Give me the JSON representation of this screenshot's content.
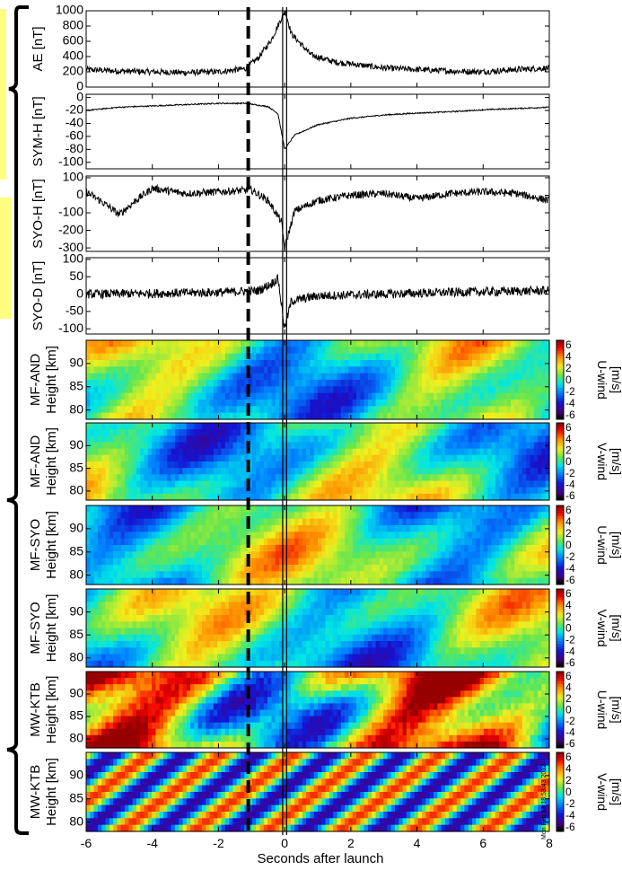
{
  "figure": {
    "xlabel": "Seconds after launch",
    "xlim": [
      -6,
      8
    ],
    "xticks": [
      -6,
      -4,
      -2,
      0,
      2,
      4,
      6,
      8
    ],
    "timestamp_text": "Mon Feb 13 18:53:43 2012",
    "colors": {
      "highlight": "#ffff80",
      "line": "#000000"
    }
  },
  "chart_data": [
    {
      "type": "line",
      "ylabel": "AE [nT]",
      "ylim": [
        0,
        1000
      ],
      "yticks": [
        0,
        200,
        400,
        600,
        800,
        1000
      ],
      "series_shape": [
        {
          "x": -6,
          "y": 230
        },
        {
          "x": -5,
          "y": 210
        },
        {
          "x": -4,
          "y": 200
        },
        {
          "x": -3,
          "y": 190
        },
        {
          "x": -2,
          "y": 200
        },
        {
          "x": -1.2,
          "y": 240
        },
        {
          "x": -0.8,
          "y": 380
        },
        {
          "x": -0.4,
          "y": 620
        },
        {
          "x": -0.1,
          "y": 900
        },
        {
          "x": 0.02,
          "y": 1000
        },
        {
          "x": 0.2,
          "y": 700
        },
        {
          "x": 0.8,
          "y": 420
        },
        {
          "x": 1.5,
          "y": 330
        },
        {
          "x": 3,
          "y": 250
        },
        {
          "x": 5,
          "y": 210
        },
        {
          "x": 6,
          "y": 200
        },
        {
          "x": 7,
          "y": 230
        },
        {
          "x": 8,
          "y": 250
        }
      ]
    },
    {
      "type": "line",
      "ylabel": "SYM-H [nT]",
      "ylim": [
        -110,
        5
      ],
      "yticks": [
        -100,
        -80,
        -60,
        -40,
        -20,
        0
      ],
      "series_shape": [
        {
          "x": -6,
          "y": -20
        },
        {
          "x": -5,
          "y": -15
        },
        {
          "x": -4,
          "y": -13
        },
        {
          "x": -3,
          "y": -11
        },
        {
          "x": -2,
          "y": -9
        },
        {
          "x": -1.2,
          "y": -9
        },
        {
          "x": -0.5,
          "y": -14
        },
        {
          "x": -0.2,
          "y": -25
        },
        {
          "x": 0,
          "y": -80
        },
        {
          "x": 0.3,
          "y": -58
        },
        {
          "x": 1,
          "y": -42
        },
        {
          "x": 2,
          "y": -32
        },
        {
          "x": 3,
          "y": -27
        },
        {
          "x": 4,
          "y": -24
        },
        {
          "x": 5,
          "y": -22
        },
        {
          "x": 6,
          "y": -19
        },
        {
          "x": 7,
          "y": -17
        },
        {
          "x": 8,
          "y": -15
        }
      ]
    },
    {
      "type": "line",
      "ylabel": "SYO-H [nT]",
      "ylim": [
        -320,
        110
      ],
      "yticks": [
        -300,
        -200,
        -100,
        0,
        100
      ],
      "series_shape": [
        {
          "x": -6,
          "y": 20
        },
        {
          "x": -5.5,
          "y": -40
        },
        {
          "x": -5,
          "y": -110
        },
        {
          "x": -4.5,
          "y": -30
        },
        {
          "x": -4,
          "y": 40
        },
        {
          "x": -3,
          "y": 10
        },
        {
          "x": -2,
          "y": 20
        },
        {
          "x": -1,
          "y": 30
        },
        {
          "x": -0.5,
          "y": -30
        },
        {
          "x": -0.1,
          "y": -150
        },
        {
          "x": 0,
          "y": -300
        },
        {
          "x": 0.3,
          "y": -90
        },
        {
          "x": 1,
          "y": -30
        },
        {
          "x": 2,
          "y": 0
        },
        {
          "x": 3,
          "y": 10
        },
        {
          "x": 4,
          "y": -20
        },
        {
          "x": 5,
          "y": 10
        },
        {
          "x": 6,
          "y": 20
        },
        {
          "x": 7,
          "y": 10
        },
        {
          "x": 8,
          "y": -30
        }
      ]
    },
    {
      "type": "line",
      "ylabel": "SYO-D [nT]",
      "ylim": [
        -115,
        105
      ],
      "yticks": [
        -100,
        -50,
        0,
        50,
        100
      ],
      "series_shape": [
        {
          "x": -6,
          "y": 0
        },
        {
          "x": -4,
          "y": 2
        },
        {
          "x": -2,
          "y": 5
        },
        {
          "x": -0.8,
          "y": 10
        },
        {
          "x": -0.4,
          "y": 30
        },
        {
          "x": -0.2,
          "y": 45
        },
        {
          "x": 0,
          "y": -100
        },
        {
          "x": 0.2,
          "y": -20
        },
        {
          "x": 1,
          "y": -5
        },
        {
          "x": 3,
          "y": 0
        },
        {
          "x": 5,
          "y": 5
        },
        {
          "x": 8,
          "y": 10
        }
      ]
    },
    {
      "type": "heatmap",
      "ylabel": "MF-AND",
      "ylabel2": "Height [km]",
      "cblabel": "U-wind",
      "cbunit": "[m/s]",
      "ylim": [
        78,
        95
      ],
      "yticks": [
        80,
        85,
        90
      ],
      "cbticks": [
        "6",
        "4",
        "2",
        "0",
        "-2",
        "-4",
        "-6"
      ],
      "vmin": -6,
      "vmax": 6
    },
    {
      "type": "heatmap",
      "ylabel": "MF-AND",
      "ylabel2": "Height [km]",
      "cblabel": "V-wind",
      "cbunit": "[m/s]",
      "ylim": [
        78,
        95
      ],
      "yticks": [
        80,
        85,
        90
      ],
      "cbticks": [
        "6",
        "4",
        "2",
        "0",
        "-2",
        "-4",
        "-6"
      ],
      "vmin": -6,
      "vmax": 6
    },
    {
      "type": "heatmap",
      "ylabel": "MF-SYO",
      "ylabel2": "Height [km]",
      "cblabel": "U-wind",
      "cbunit": "[m/s]",
      "ylim": [
        78,
        95
      ],
      "yticks": [
        80,
        85,
        90
      ],
      "cbticks": [
        "6",
        "4",
        "2",
        "0",
        "-2",
        "-4",
        "-6"
      ],
      "vmin": -6,
      "vmax": 6
    },
    {
      "type": "heatmap",
      "ylabel": "MF-SYO",
      "ylabel2": "Height [km]",
      "cblabel": "V-wind",
      "cbunit": "[m/s]",
      "ylim": [
        78,
        95
      ],
      "yticks": [
        80,
        85,
        90
      ],
      "cbticks": [
        "6",
        "4",
        "2",
        "0",
        "-2",
        "-4",
        "-6"
      ],
      "vmin": -6,
      "vmax": 6
    },
    {
      "type": "heatmap",
      "ylabel": "MW-KTB",
      "ylabel2": "Height [km]",
      "cblabel": "U-wind",
      "cbunit": "[m/s]",
      "ylim": [
        78,
        95
      ],
      "yticks": [
        80,
        85,
        90
      ],
      "cbticks": [
        "6",
        "4",
        "2",
        "0",
        "-2",
        "-4",
        "-6"
      ],
      "vmin": -6,
      "vmax": 6
    },
    {
      "type": "heatmap",
      "ylabel": "MW-KTB",
      "ylabel2": "Height [km]",
      "cblabel": "V-wind",
      "cbunit": "[m/s]",
      "ylim": [
        78,
        95
      ],
      "yticks": [
        80,
        85,
        90
      ],
      "cbticks": [
        "6",
        "4",
        "2",
        "0",
        "-2",
        "-4",
        "-6"
      ],
      "vmin": -6,
      "vmax": 6
    }
  ]
}
